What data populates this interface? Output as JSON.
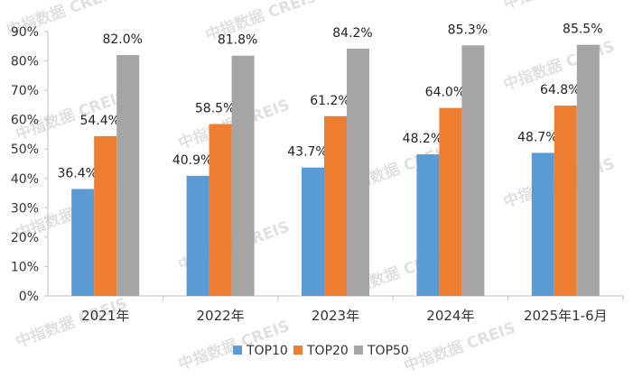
{
  "chart_data": {
    "type": "bar",
    "categories": [
      "2021年",
      "2022年",
      "2023年",
      "2024年",
      "2025年1-6月"
    ],
    "series": [
      {
        "name": "TOP10",
        "values": [
          36.4,
          40.9,
          43.7,
          48.2,
          48.7
        ],
        "labels": [
          "36.4%",
          "40.9%",
          "43.7%",
          "48.2%",
          "48.7%"
        ],
        "color": "#5b9bd5"
      },
      {
        "name": "TOP20",
        "values": [
          54.4,
          58.5,
          61.2,
          64.0,
          64.8
        ],
        "labels": [
          "54.4%",
          "58.5%",
          "61.2%",
          "64.0%",
          "64.8%"
        ],
        "color": "#ed7d31"
      },
      {
        "name": "TOP50",
        "values": [
          82.0,
          81.8,
          84.2,
          85.3,
          85.5
        ],
        "labels": [
          "82.0%",
          "81.8%",
          "84.2%",
          "85.3%",
          "85.5%"
        ],
        "color": "#a5a5a5"
      }
    ],
    "yticks": [
      "0%",
      "10%",
      "20%",
      "30%",
      "40%",
      "50%",
      "60%",
      "70%",
      "80%",
      "90%"
    ],
    "ylim": [
      0,
      90
    ],
    "grid": false,
    "legend_position": "bottom",
    "title": "",
    "xlabel": "",
    "ylabel": ""
  },
  "watermark": "中指数据 CREIS"
}
